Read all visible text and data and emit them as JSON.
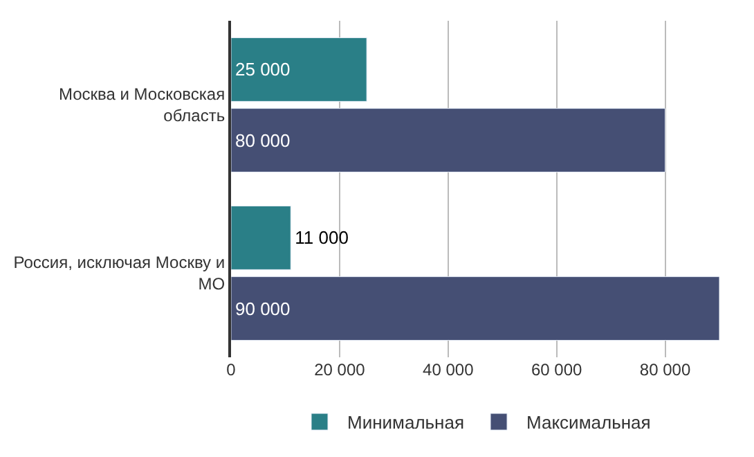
{
  "chart_data": {
    "type": "bar",
    "orientation": "horizontal",
    "categories": [
      "Москва и Московская область",
      "Россия, исключая Москву и МО"
    ],
    "series": [
      {
        "name": "Минимальная",
        "color": "#2a7f87",
        "values": [
          25000,
          11000
        ]
      },
      {
        "name": "Максимальная",
        "color": "#454f74",
        "values": [
          80000,
          90000
        ]
      }
    ],
    "xlim": [
      0,
      90000
    ],
    "xticks": [
      {
        "value": 0,
        "label": "0"
      },
      {
        "value": 20000,
        "label": "20 000"
      },
      {
        "value": 40000,
        "label": "40 000"
      },
      {
        "value": 60000,
        "label": "60 000"
      },
      {
        "value": 80000,
        "label": "80 000"
      }
    ],
    "data_labels": true,
    "grid": "x",
    "legend": "bottom"
  }
}
